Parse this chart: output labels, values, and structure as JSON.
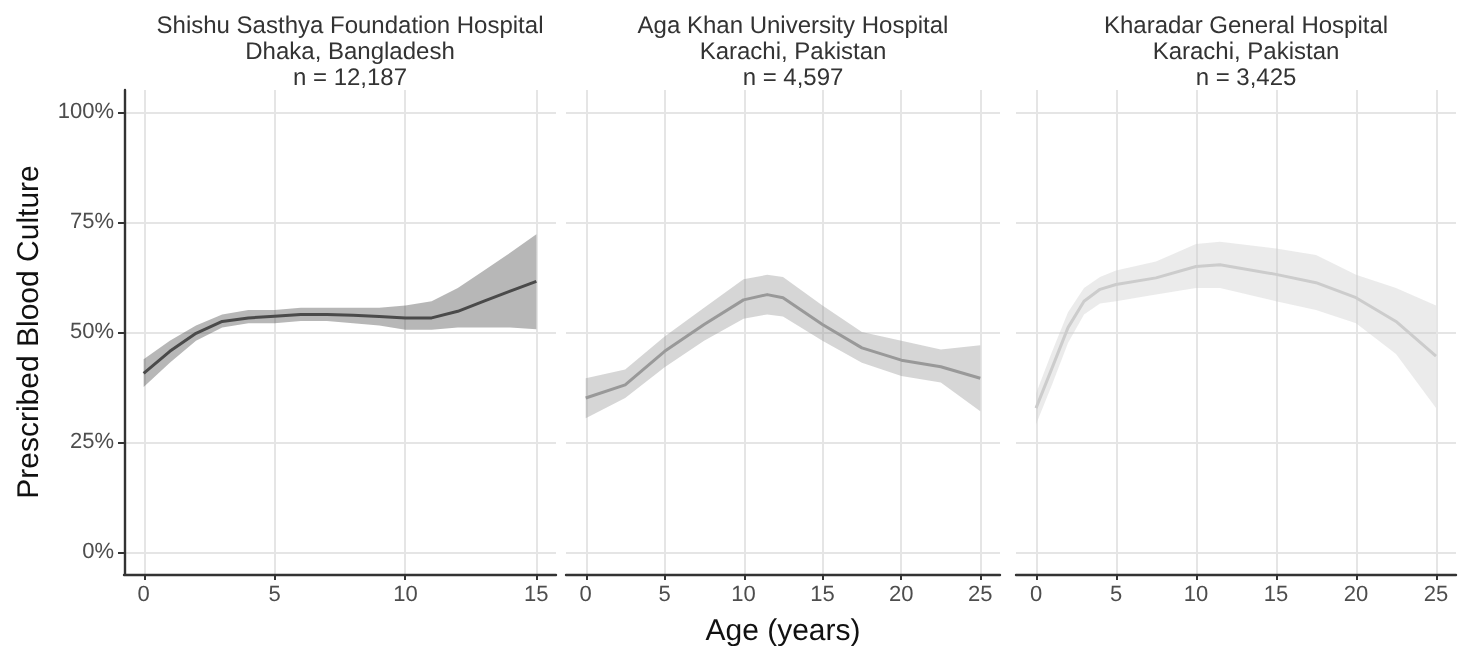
{
  "chart_data": [
    {
      "type": "line",
      "title": "Shishu Sasthya Foundation Hospital\nDhaka, Bangladesh\nn = 12,187",
      "ylabel": "Prescribed Blood Culture",
      "grid": true,
      "xlim": [
        -0.75,
        15.75
      ],
      "xticks": [
        0,
        5,
        10,
        15
      ],
      "ylim": [
        -5,
        105
      ],
      "yticks": [
        {
          "value": 0,
          "label": "0%"
        },
        {
          "value": 25,
          "label": "25%"
        },
        {
          "value": 50,
          "label": "50%"
        },
        {
          "value": 75,
          "label": "75%"
        },
        {
          "value": 100,
          "label": "100%"
        }
      ],
      "x": [
        0,
        1,
        2,
        3,
        4,
        5,
        6,
        7,
        8,
        9,
        10,
        11,
        12,
        13,
        14,
        15
      ],
      "series": [
        {
          "color": "#4a4a4a",
          "values": [
            40.6,
            45.6,
            49.7,
            52.4,
            53.2,
            53.6,
            54,
            54,
            53.8,
            53.5,
            53.2,
            53.2,
            54.7,
            57,
            59.3,
            61.5
          ],
          "lower": [
            37.5,
            43,
            48,
            51,
            52,
            52,
            52.5,
            52.5,
            52,
            51.5,
            50.5,
            50.5,
            51,
            51,
            51,
            50.6
          ],
          "upper": [
            43.8,
            48,
            51.5,
            54,
            55,
            55,
            55.5,
            55.5,
            55.5,
            55.5,
            56,
            57,
            60,
            64,
            68,
            72.2
          ]
        }
      ]
    },
    {
      "type": "line",
      "title": "Aga Khan University Hospital\nKarachi, Pakistan\nn = 4,597",
      "xlabel": "Age (years)",
      "grid": true,
      "tick_labels": "x",
      "xlim": [
        -1.25,
        26.25
      ],
      "xticks": [
        0,
        5,
        10,
        15,
        20,
        25
      ],
      "ylim": [
        -5,
        105
      ],
      "yticks": [
        {
          "value": 0,
          "label": null
        },
        {
          "value": 25,
          "label": null
        },
        {
          "value": 50,
          "label": null
        },
        {
          "value": 75,
          "label": null
        },
        {
          "value": 100,
          "label": null
        }
      ],
      "x": [
        0,
        2.5,
        5,
        7.5,
        10,
        11.5,
        12.5,
        15,
        17.5,
        20,
        22.5,
        25
      ],
      "series": [
        {
          "color": "#999999",
          "values": [
            35,
            38,
            45.6,
            51.7,
            57.3,
            58.5,
            57.8,
            51.7,
            46.4,
            43.6,
            42.1,
            39.5
          ],
          "lower": [
            30.4,
            35,
            42,
            48,
            53,
            54,
            53.5,
            48,
            43,
            40,
            38.5,
            32
          ],
          "upper": [
            39.5,
            41.5,
            49,
            55.5,
            62,
            63,
            62.5,
            56,
            50,
            48,
            46,
            47
          ]
        }
      ]
    },
    {
      "type": "line",
      "title": "Kharadar General Hospital\nKarachi, Pakistan\nn = 3,425",
      "grid": true,
      "tick_labels": "x",
      "xlim": [
        -1.25,
        26.25
      ],
      "xticks": [
        0,
        5,
        10,
        15,
        20,
        25
      ],
      "ylim": [
        -5,
        105
      ],
      "yticks": [
        {
          "value": 0,
          "label": null
        },
        {
          "value": 25,
          "label": null
        },
        {
          "value": 50,
          "label": null
        },
        {
          "value": 75,
          "label": null
        },
        {
          "value": 100,
          "label": null
        }
      ],
      "x": [
        0,
        1,
        2,
        3,
        4,
        5,
        7.5,
        10,
        11.5,
        15,
        17.5,
        20,
        22.5,
        25
      ],
      "series": [
        {
          "color": "#cccccc",
          "values": [
            32.7,
            41.8,
            51,
            57,
            59.7,
            60.8,
            62.3,
            64.9,
            65.3,
            63.1,
            61.2,
            57.8,
            52.4,
            44.5
          ],
          "lower": [
            29,
            38,
            47.5,
            54,
            56.5,
            57,
            58.5,
            60,
            60,
            57,
            55,
            52,
            45,
            32.7
          ],
          "upper": [
            36,
            45.5,
            54.5,
            60,
            62.5,
            64,
            66,
            70,
            70.5,
            69,
            67.5,
            63,
            60,
            56
          ]
        }
      ]
    }
  ]
}
